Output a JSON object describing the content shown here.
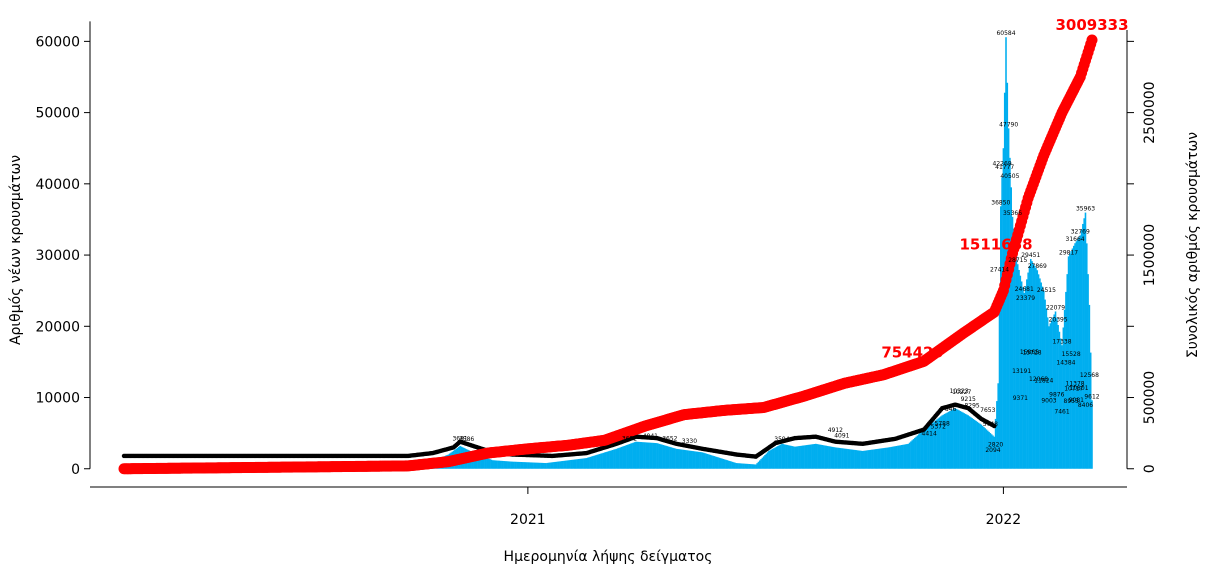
{
  "chart_data": {
    "type": "bar",
    "xlabel": "Ημερομηνία λήψης δείγματος",
    "ylabel_left": "Αριθμός νέων κρουσμάτων",
    "ylabel_right": "Συνολικός αριθμός κρουσμάτων",
    "x_range": [
      "2020-02-26",
      "2022-03-15"
    ],
    "x_ticks": [
      {
        "date": "2021-01-01",
        "label": "2021"
      },
      {
        "date": "2022-01-01",
        "label": "2022"
      }
    ],
    "y_left": {
      "ticks": [
        0,
        10000,
        20000,
        30000,
        40000,
        50000,
        60000
      ],
      "ylim": [
        -2000,
        63000
      ]
    },
    "y_right": {
      "ticks": [
        0,
        500000,
        1500000,
        2500000
      ],
      "ylim": [
        -100000,
        3150000
      ]
    },
    "colors": {
      "bars": "#00aeef",
      "cumulative": "#ff0000",
      "moving_average": "#000000"
    },
    "daily_cases_anchors": [
      [
        "2020-02-26",
        0
      ],
      [
        "2020-10-01",
        300
      ],
      [
        "2020-10-15",
        700
      ],
      [
        "2020-11-01",
        2000
      ],
      [
        "2020-11-10",
        3200
      ],
      [
        "2020-11-20",
        2300
      ],
      [
        "2020-12-05",
        1200
      ],
      [
        "2020-12-20",
        1000
      ],
      [
        "2021-01-15",
        800
      ],
      [
        "2021-02-15",
        1500
      ],
      [
        "2021-03-10",
        2800
      ],
      [
        "2021-03-25",
        3800
      ],
      [
        "2021-04-10",
        3600
      ],
      [
        "2021-04-25",
        2800
      ],
      [
        "2021-05-15",
        2300
      ],
      [
        "2021-06-10",
        800
      ],
      [
        "2021-06-25",
        600
      ],
      [
        "2021-07-05",
        2500
      ],
      [
        "2021-07-15",
        3500
      ],
      [
        "2021-07-25",
        3100
      ],
      [
        "2021-08-10",
        3500
      ],
      [
        "2021-08-25",
        3000
      ],
      [
        "2021-09-15",
        2500
      ],
      [
        "2021-10-05",
        3000
      ],
      [
        "2021-10-20",
        3500
      ],
      [
        "2021-11-01",
        5500
      ],
      [
        "2021-11-15",
        7500
      ],
      [
        "2021-11-25",
        8500
      ],
      [
        "2021-12-05",
        7500
      ],
      [
        "2021-12-15",
        6200
      ],
      [
        "2021-12-25",
        4500
      ],
      [
        "2021-12-28",
        12000
      ],
      [
        "2021-12-30",
        36850
      ],
      [
        "2022-01-01",
        45000
      ],
      [
        "2022-01-03",
        60584
      ],
      [
        "2022-01-05",
        47790
      ],
      [
        "2022-01-08",
        35366
      ],
      [
        "2022-01-12",
        28715
      ],
      [
        "2022-01-17",
        24681
      ],
      [
        "2022-01-22",
        29451
      ],
      [
        "2022-01-27",
        27869
      ],
      [
        "2022-02-01",
        25000
      ],
      [
        "2022-02-05",
        20000
      ],
      [
        "2022-02-10",
        22079
      ],
      [
        "2022-02-15",
        17338
      ],
      [
        "2022-02-20",
        29817
      ],
      [
        "2022-02-25",
        31664
      ],
      [
        "2022-03-01",
        32769
      ],
      [
        "2022-03-05",
        35963
      ],
      [
        "2022-03-08",
        23000
      ],
      [
        "2022-03-10",
        9612
      ]
    ],
    "cumulative_anchors": [
      [
        "2020-02-26",
        0
      ],
      [
        "2020-10-01",
        20000
      ],
      [
        "2020-11-01",
        50000
      ],
      [
        "2020-12-01",
        110000
      ],
      [
        "2021-01-01",
        140000
      ],
      [
        "2021-02-01",
        165000
      ],
      [
        "2021-03-01",
        200000
      ],
      [
        "2021-04-01",
        300000
      ],
      [
        "2021-05-01",
        380000
      ],
      [
        "2021-06-01",
        410000
      ],
      [
        "2021-07-01",
        430000
      ],
      [
        "2021-08-01",
        510000
      ],
      [
        "2021-09-01",
        600000
      ],
      [
        "2021-10-01",
        660000
      ],
      [
        "2021-11-01",
        754429
      ],
      [
        "2021-12-01",
        950000
      ],
      [
        "2021-12-25",
        1100000
      ],
      [
        "2022-01-01",
        1250000
      ],
      [
        "2022-01-08",
        1511688
      ],
      [
        "2022-01-20",
        1900000
      ],
      [
        "2022-02-01",
        2200000
      ],
      [
        "2022-02-15",
        2500000
      ],
      [
        "2022-03-01",
        2750000
      ],
      [
        "2022-03-10",
        3009333
      ]
    ],
    "moving_average_anchors": [
      [
        "2020-02-26",
        1800
      ],
      [
        "2020-10-01",
        1800
      ],
      [
        "2020-10-20",
        2200
      ],
      [
        "2020-11-05",
        3000
      ],
      [
        "2020-11-10",
        3800
      ],
      [
        "2020-11-20",
        3200
      ],
      [
        "2020-12-05",
        2300
      ],
      [
        "2020-12-20",
        2000
      ],
      [
        "2021-01-20",
        1800
      ],
      [
        "2021-02-15",
        2200
      ],
      [
        "2021-03-10",
        3500
      ],
      [
        "2021-03-25",
        4500
      ],
      [
        "2021-04-10",
        4300
      ],
      [
        "2021-04-25",
        3500
      ],
      [
        "2021-05-15",
        2800
      ],
      [
        "2021-06-10",
        2000
      ],
      [
        "2021-06-25",
        1700
      ],
      [
        "2021-07-10",
        3600
      ],
      [
        "2021-07-25",
        4300
      ],
      [
        "2021-08-10",
        4500
      ],
      [
        "2021-08-25",
        3800
      ],
      [
        "2021-09-15",
        3500
      ],
      [
        "2021-10-10",
        4200
      ],
      [
        "2021-11-01",
        5500
      ],
      [
        "2021-11-15",
        8500
      ],
      [
        "2021-11-25",
        9000
      ],
      [
        "2021-12-05",
        8500
      ],
      [
        "2021-12-15",
        7000
      ],
      [
        "2021-12-25",
        6000
      ]
    ],
    "callouts": [
      {
        "date": "2021-11-01",
        "value": 754429,
        "text": "754429"
      },
      {
        "date": "2022-01-08",
        "value": 1511688,
        "text": "1511688"
      },
      {
        "date": "2022-03-10",
        "value": 3009333,
        "text": "3009333"
      }
    ],
    "small_labels": [
      {
        "date": "2022-01-03",
        "value": 60584,
        "text": "60584"
      },
      {
        "date": "2022-01-05",
        "value": 47790,
        "text": "47790"
      },
      {
        "date": "2021-12-31",
        "value": 42269,
        "text": "42269"
      },
      {
        "date": "2022-01-02",
        "value": 41777,
        "text": "41777"
      },
      {
        "date": "2022-01-06",
        "value": 40505,
        "text": "40505"
      },
      {
        "date": "2021-12-30",
        "value": 36850,
        "text": "36850"
      },
      {
        "date": "2022-01-08",
        "value": 35366,
        "text": "35366"
      },
      {
        "date": "2022-01-12",
        "value": 28715,
        "text": "28715"
      },
      {
        "date": "2021-12-29",
        "value": 27414,
        "text": "27414"
      },
      {
        "date": "2022-01-17",
        "value": 24681,
        "text": "24681"
      },
      {
        "date": "2022-01-18",
        "value": 23379,
        "text": "23379"
      },
      {
        "date": "2022-01-22",
        "value": 29451,
        "text": "29451"
      },
      {
        "date": "2022-01-27",
        "value": 27869,
        "text": "27869"
      },
      {
        "date": "2022-02-03",
        "value": 24515,
        "text": "24515"
      },
      {
        "date": "2022-02-10",
        "value": 22079,
        "text": "22079"
      },
      {
        "date": "2022-02-12",
        "value": 20395,
        "text": "20395"
      },
      {
        "date": "2022-02-20",
        "value": 29817,
        "text": "29817"
      },
      {
        "date": "2022-02-25",
        "value": 31664,
        "text": "31664"
      },
      {
        "date": "2022-03-01",
        "value": 32769,
        "text": "32769"
      },
      {
        "date": "2022-03-05",
        "value": 35963,
        "text": "35963"
      },
      {
        "date": "2022-01-21",
        "value": 15865,
        "text": "15865"
      },
      {
        "date": "2022-01-23",
        "value": 15728,
        "text": "15728"
      },
      {
        "date": "2022-01-15",
        "value": 13191,
        "text": "13191"
      },
      {
        "date": "2022-01-28",
        "value": 12068,
        "text": "12068"
      },
      {
        "date": "2022-02-01",
        "value": 11824,
        "text": "11824"
      },
      {
        "date": "2022-02-15",
        "value": 17338,
        "text": "17338"
      },
      {
        "date": "2022-02-22",
        "value": 15528,
        "text": "15528"
      },
      {
        "date": "2022-02-18",
        "value": 14384,
        "text": "14384"
      },
      {
        "date": "2022-03-08",
        "value": 12568,
        "text": "12568"
      },
      {
        "date": "2022-02-25",
        "value": 11378,
        "text": "11378"
      },
      {
        "date": "2022-02-24",
        "value": 10717,
        "text": "10717"
      },
      {
        "date": "2022-02-28",
        "value": 10801,
        "text": "10801"
      },
      {
        "date": "2022-01-14",
        "value": 9371,
        "text": "9371"
      },
      {
        "date": "2022-02-05",
        "value": 9003,
        "text": "9003"
      },
      {
        "date": "2022-02-11",
        "value": 9876,
        "text": "9876"
      },
      {
        "date": "2022-02-22",
        "value": 8955,
        "text": "8955"
      },
      {
        "date": "2022-02-26",
        "value": 9081,
        "text": "9081"
      },
      {
        "date": "2022-03-10",
        "value": 9612,
        "text": "9612"
      },
      {
        "date": "2022-03-05",
        "value": 8406,
        "text": "8406"
      },
      {
        "date": "2022-02-15",
        "value": 7461,
        "text": "7461"
      },
      {
        "date": "2021-11-28",
        "value": 10323,
        "text": "10323"
      },
      {
        "date": "2021-11-30",
        "value": 10227,
        "text": "10227"
      },
      {
        "date": "2021-12-05",
        "value": 9215,
        "text": "9215"
      },
      {
        "date": "2021-12-08",
        "value": 8295,
        "text": "8295"
      },
      {
        "date": "2021-11-20",
        "value": 7846,
        "text": "7846"
      },
      {
        "date": "2021-12-20",
        "value": 7653,
        "text": "7653"
      },
      {
        "date": "2021-11-15",
        "value": 5788,
        "text": "5788"
      },
      {
        "date": "2021-11-12",
        "value": 5372,
        "text": "5372"
      },
      {
        "date": "2021-12-22",
        "value": 5748,
        "text": "5748"
      },
      {
        "date": "2021-11-05",
        "value": 4414,
        "text": "4414"
      },
      {
        "date": "2021-12-26",
        "value": 2820,
        "text": "2820"
      },
      {
        "date": "2021-12-24",
        "value": 2094,
        "text": "2094"
      },
      {
        "date": "2021-08-25",
        "value": 4912,
        "text": "4912"
      },
      {
        "date": "2021-08-30",
        "value": 4091,
        "text": "4091"
      },
      {
        "date": "2021-04-05",
        "value": 4041,
        "text": "4041"
      },
      {
        "date": "2021-03-20",
        "value": 3652,
        "text": "3652"
      },
      {
        "date": "2021-04-20",
        "value": 3652,
        "text": "3652"
      },
      {
        "date": "2021-05-05",
        "value": 3330,
        "text": "3330"
      },
      {
        "date": "2021-07-15",
        "value": 3594,
        "text": "3594"
      },
      {
        "date": "2020-11-10",
        "value": 3681,
        "text": "3681"
      },
      {
        "date": "2020-11-15",
        "value": 3586,
        "text": "3586"
      }
    ]
  }
}
